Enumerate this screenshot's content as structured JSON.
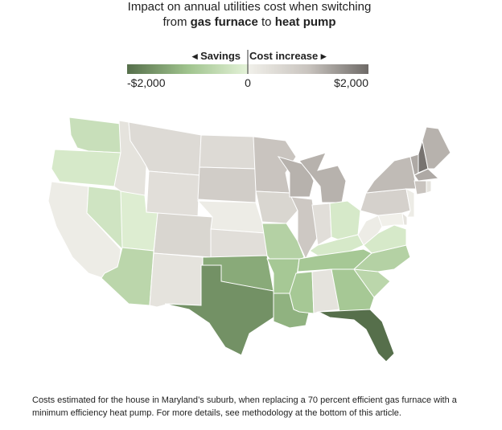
{
  "title_line1": "Impact on annual utilities cost when switching",
  "title_line2": [
    "from ",
    "gas furnace",
    " to ",
    "heat pump"
  ],
  "legend": {
    "left_label": "◂ Savings",
    "right_label": "Cost increase ▸",
    "range": [
      -2000,
      2000
    ],
    "ticks": [
      {
        "value": -2000,
        "label": "-$2,000"
      },
      0,
      {
        "value": 2000,
        "label": "$2,000"
      }
    ],
    "color_scale": [
      {
        "value": -2000,
        "color": "#566f4b"
      },
      {
        "value": -1000,
        "color": "#9fc38d"
      },
      {
        "value": -1,
        "color": "#e4f2d8"
      },
      {
        "value": 0,
        "color": "#f1f0ea"
      },
      {
        "value": 1000,
        "color": "#c9c4bf"
      },
      {
        "value": 2000,
        "color": "#6e6a67"
      }
    ]
  },
  "regions": {
    "values": [
      -400,
      -200,
      100,
      -300,
      300,
      500,
      400,
      -100,
      -600,
      600,
      300,
      500,
      800,
      100,
      400,
      -1300,
      -1600,
      1000,
      600,
      -700,
      -900,
      -1200,
      1200,
      900,
      -900,
      1200,
      400,
      -200,
      -200,
      -900,
      300,
      -900,
      -2000,
      -600,
      -700,
      -200,
      100,
      0,
      300,
      700,
      1100,
      1300,
      1900,
      1200,
      1300,
      1000,
      300,
      100
    ]
  },
  "footnote": "Costs estimated for the house in Maryland’s suburb, when replacing a 70 percent efficient gas furnace with a minimum efficiency heat pump. For more details, see methodology at the bottom of this article."
}
